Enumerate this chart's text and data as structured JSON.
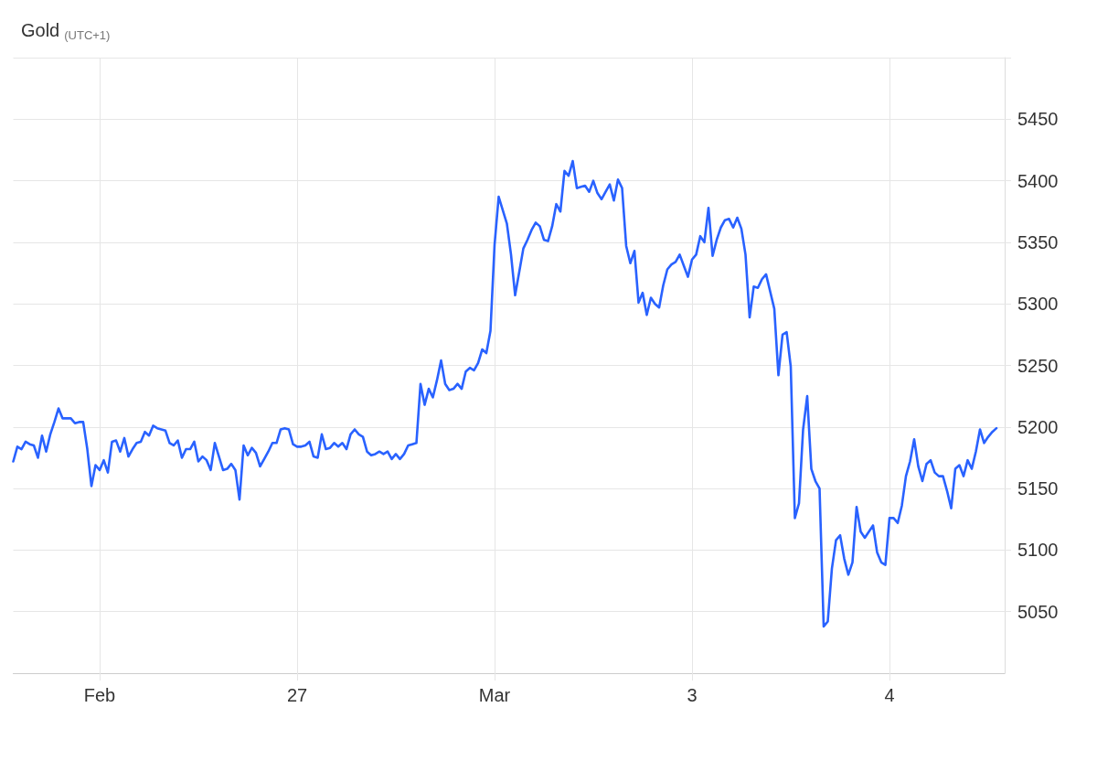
{
  "chart_data": {
    "type": "line",
    "title": "Gold",
    "subtitle": "(UTC+1)",
    "categories": [
      null,
      null,
      null,
      null,
      null,
      null,
      null,
      null,
      null,
      null,
      null,
      null,
      null,
      null,
      null,
      null,
      null,
      null,
      null,
      null,
      null,
      "Feb",
      null,
      null,
      null,
      null,
      null,
      null,
      null,
      null,
      null,
      null,
      null,
      null,
      null,
      null,
      null,
      null,
      null,
      null,
      null,
      null,
      null,
      null,
      null,
      null,
      null,
      null,
      null,
      null,
      null,
      null,
      null,
      null,
      null,
      null,
      null,
      null,
      null,
      null,
      null,
      null,
      null,
      null,
      null,
      null,
      null,
      null,
      null,
      "27",
      null,
      null,
      null,
      null,
      null,
      null,
      null,
      null,
      null,
      null,
      null,
      null,
      null,
      null,
      null,
      null,
      null,
      null,
      null,
      null,
      null,
      null,
      null,
      null,
      null,
      null,
      null,
      null,
      null,
      null,
      null,
      null,
      null,
      null,
      null,
      null,
      null,
      null,
      null,
      null,
      null,
      null,
      null,
      null,
      null,
      null,
      null,
      "Mar",
      null,
      null,
      null,
      null,
      null,
      null,
      null,
      null,
      null,
      null,
      null,
      null,
      null,
      null,
      null,
      null,
      null,
      null,
      null,
      null,
      null,
      null,
      null,
      null,
      null,
      null,
      null,
      null,
      null,
      null,
      null,
      null,
      null,
      null,
      null,
      null,
      null,
      null,
      null,
      null,
      null,
      null,
      null,
      null,
      null,
      null,
      null,
      "3",
      null,
      null,
      null,
      null,
      null,
      null,
      null,
      null,
      null,
      null,
      null,
      null,
      null,
      null,
      null,
      null,
      null,
      null,
      null,
      null,
      null,
      null,
      null,
      null,
      null,
      null,
      null,
      null,
      null,
      null,
      null,
      null,
      null,
      null,
      null,
      null,
      null,
      null,
      null,
      null,
      null,
      null,
      null,
      null,
      null,
      null,
      null,
      "4",
      null,
      null,
      null,
      null,
      null,
      null,
      null,
      null,
      null,
      null,
      null,
      null,
      null,
      null,
      null,
      null,
      null,
      null,
      null,
      null,
      null,
      null,
      null,
      null,
      null,
      null,
      null,
      null
    ],
    "series": [
      {
        "color": "#2962ff",
        "values": [
          5172,
          5184,
          5182,
          5188,
          5186,
          5185,
          5175,
          5193,
          5180,
          5194,
          5204,
          5215,
          5207,
          5207,
          5207,
          5203,
          5204,
          5204,
          5182,
          5152,
          5169,
          5165,
          5173,
          5163,
          5188,
          5189,
          5180,
          5191,
          5176,
          5182,
          5187,
          5188,
          5196,
          5193,
          5201,
          5199,
          5198,
          5197,
          5187,
          5185,
          5189,
          5175,
          5182,
          5182,
          5188,
          5172,
          5176,
          5173,
          5165,
          5187,
          5176,
          5165,
          5166,
          5170,
          5165,
          5141,
          5185,
          5177,
          5183,
          5179,
          5168,
          5174,
          5180,
          5187,
          5187,
          5198,
          5199,
          5198,
          5186,
          5184,
          5184,
          5185,
          5188,
          5176,
          5175,
          5194,
          5182,
          5183,
          5187,
          5184,
          5187,
          5182,
          5194,
          5198,
          5194,
          5192,
          5180,
          5177,
          5178,
          5180,
          5178,
          5180,
          5174,
          5178,
          5174,
          5178,
          5185,
          5186,
          5187,
          5235,
          5218,
          5231,
          5224,
          5238,
          5254,
          5235,
          5230,
          5231,
          5235,
          5231,
          5245,
          5248,
          5246,
          5252,
          5263,
          5260,
          5278,
          5348,
          5387,
          5376,
          5365,
          5340,
          5307,
          5326,
          5345,
          5352,
          5360,
          5366,
          5363,
          5352,
          5351,
          5363,
          5381,
          5375,
          5408,
          5404,
          5416,
          5394,
          5395,
          5396,
          5391,
          5400,
          5390,
          5385,
          5391,
          5397,
          5384,
          5401,
          5394,
          5347,
          5333,
          5343,
          5301,
          5309,
          5291,
          5305,
          5300,
          5297,
          5315,
          5328,
          5332,
          5334,
          5340,
          5331,
          5322,
          5336,
          5340,
          5355,
          5350,
          5378,
          5339,
          5352,
          5362,
          5368,
          5369,
          5362,
          5370,
          5361,
          5340,
          5289,
          5314,
          5313,
          5320,
          5324,
          5310,
          5296,
          5242,
          5275,
          5277,
          5249,
          5126,
          5138,
          5198,
          5225,
          5166,
          5156,
          5150,
          5038,
          5042,
          5085,
          5108,
          5112,
          5093,
          5080,
          5090,
          5135,
          5115,
          5110,
          5115,
          5120,
          5098,
          5090,
          5088,
          5126,
          5126,
          5122,
          5136,
          5160,
          5172,
          5190,
          5168,
          5156,
          5170,
          5173,
          5163,
          5160,
          5160,
          5148,
          5134,
          5166,
          5169,
          5160,
          5173,
          5166,
          5180,
          5198,
          5187,
          5192,
          5196,
          5199,
          null,
          null
        ]
      }
    ],
    "ylim": [
      5000,
      5500
    ],
    "yticks": [
      5050,
      5100,
      5150,
      5200,
      5250,
      5300,
      5350,
      5400,
      5450,
      {
        "value": 5500,
        "label": null
      }
    ],
    "grid": true,
    "marker": "none",
    "line_style": "solid"
  }
}
